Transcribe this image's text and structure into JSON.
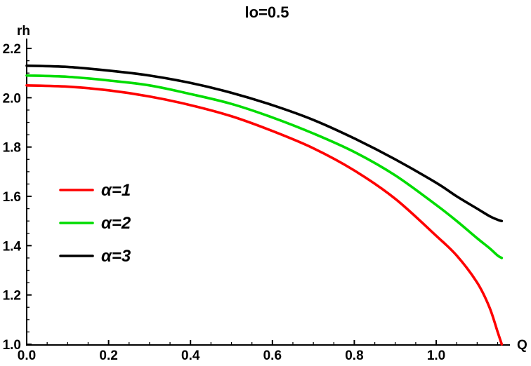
{
  "chart_data": {
    "type": "line",
    "title": "lo=0.5",
    "xlabel": "Q",
    "ylabel": "rh",
    "xlim": [
      0,
      1.18
    ],
    "ylim": [
      1.0,
      2.24
    ],
    "grid": false,
    "legend_position": "left-center-inside",
    "xticks": [
      {
        "v": 0.0,
        "label": "0.0"
      },
      {
        "v": 0.2,
        "label": "0.2"
      },
      {
        "v": 0.4,
        "label": "0.4"
      },
      {
        "v": 0.6,
        "label": "0.6"
      },
      {
        "v": 0.8,
        "label": "0.8"
      },
      {
        "v": 1.0,
        "label": "1.0"
      }
    ],
    "yticks": [
      {
        "v": 1.0,
        "label": "1.0"
      },
      {
        "v": 1.2,
        "label": "1.2"
      },
      {
        "v": 1.4,
        "label": "1.4"
      },
      {
        "v": 1.6,
        "label": "1.6"
      },
      {
        "v": 1.8,
        "label": "1.8"
      },
      {
        "v": 2.0,
        "label": "2.0"
      },
      {
        "v": 2.2,
        "label": "2.2"
      }
    ],
    "x": [
      0,
      0.1,
      0.2,
      0.3,
      0.4,
      0.5,
      0.6,
      0.7,
      0.8,
      0.9,
      1.0,
      1.05,
      1.1,
      1.13,
      1.15,
      1.16
    ],
    "series": [
      {
        "name": "α=1",
        "color": "#fe0000",
        "values": [
          2.05,
          2.045,
          2.03,
          2.005,
          1.97,
          1.925,
          1.865,
          1.795,
          1.705,
          1.59,
          1.44,
          1.36,
          1.25,
          1.15,
          1.05,
          1.0
        ]
      },
      {
        "name": "α=2",
        "color": "#00dc00",
        "values": [
          2.09,
          2.085,
          2.07,
          2.05,
          2.015,
          1.975,
          1.92,
          1.855,
          1.78,
          1.685,
          1.565,
          1.5,
          1.43,
          1.39,
          1.36,
          1.35
        ]
      },
      {
        "name": "α=3",
        "color": "#000000",
        "values": [
          2.13,
          2.125,
          2.11,
          2.09,
          2.06,
          2.02,
          1.97,
          1.91,
          1.835,
          1.75,
          1.655,
          1.6,
          1.55,
          1.52,
          1.505,
          1.5
        ]
      }
    ]
  }
}
